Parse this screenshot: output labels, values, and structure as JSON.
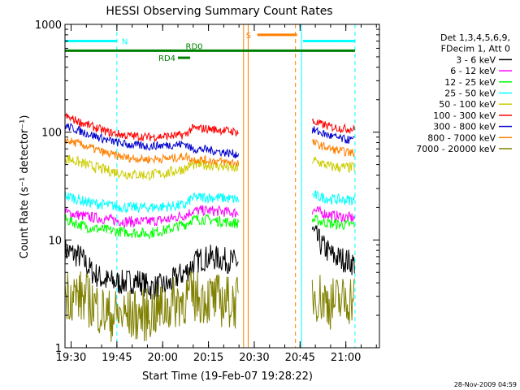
{
  "chart_data": {
    "type": "line",
    "title": "HESSI Observing Summary Count Rates",
    "xlabel": "Start Time (19-Feb-07 19:28:22)",
    "ylabel": "Count Rate (s⁻¹ detector⁻¹)",
    "yscale": "log",
    "ylim": [
      1,
      1000
    ],
    "xlim_minutes": [
      1168,
      1271
    ],
    "x_ticks": [
      {
        "label": "19:30",
        "min": 1170
      },
      {
        "label": "19:45",
        "min": 1185
      },
      {
        "label": "20:00",
        "min": 1200
      },
      {
        "label": "20:15",
        "min": 1215
      },
      {
        "label": "20:30",
        "min": 1230
      },
      {
        "label": "20:45",
        "min": 1245
      },
      {
        "label": "21:00",
        "min": 1260
      }
    ],
    "y_ticks": [
      {
        "label": "1",
        "value": 1
      },
      {
        "label": "10",
        "value": 10
      },
      {
        "label": "100",
        "value": 100
      },
      {
        "label": "1000",
        "value": 1000
      }
    ],
    "legend": {
      "header": [
        "Det 1,3,4,5,6,9,",
        "FDecim 1, Att 0"
      ],
      "placement": "right"
    },
    "series": [
      {
        "name": "3 - 6 keV",
        "color": "#000000",
        "noise": 0.12,
        "segments": [
          [
            [
              1168,
              8
            ],
            [
              1173,
              7
            ],
            [
              1177,
              5
            ],
            [
              1181,
              4.2
            ],
            [
              1186,
              4.0
            ],
            [
              1192,
              4.2
            ],
            [
              1196,
              3.6
            ],
            [
              1202,
              3.8
            ],
            [
              1205,
              4.6
            ],
            [
              1207.5,
              5
            ],
            [
              1209.5,
              5.8
            ],
            [
              1212,
              6.6
            ],
            [
              1216,
              6.9
            ],
            [
              1222,
              6.4
            ],
            [
              1225,
              6.2
            ]
          ],
          [
            [
              1249,
              12
            ],
            [
              1252,
              9
            ],
            [
              1256,
              7
            ],
            [
              1260,
              6.5
            ],
            [
              1263,
              6
            ]
          ]
        ]
      },
      {
        "name": "6 - 12 keV",
        "color": "#ff00ff",
        "noise": 0.05,
        "segments": [
          [
            [
              1168,
              18
            ],
            [
              1175,
              16.5
            ],
            [
              1182,
              15.5
            ],
            [
              1188,
              14.8
            ],
            [
              1195,
              14.8
            ],
            [
              1202,
              15.5
            ],
            [
              1205,
              16.5
            ],
            [
              1207.5,
              17
            ],
            [
              1209.5,
              18.5
            ],
            [
              1214,
              18.8
            ],
            [
              1220,
              18.3
            ],
            [
              1225,
              17.8
            ]
          ],
          [
            [
              1249,
              19
            ],
            [
              1255,
              17
            ],
            [
              1259,
              16.3
            ],
            [
              1263,
              16
            ]
          ]
        ]
      },
      {
        "name": "12 - 25 keV",
        "color": "#00ff00",
        "noise": 0.05,
        "segments": [
          [
            [
              1168,
              15.5
            ],
            [
              1175,
              13.2
            ],
            [
              1182,
              12.3
            ],
            [
              1188,
              11.8
            ],
            [
              1195,
              11.5
            ],
            [
              1202,
              12.5
            ],
            [
              1205,
              13.5
            ],
            [
              1207.5,
              14
            ],
            [
              1209.5,
              15.5
            ],
            [
              1214,
              15.5
            ],
            [
              1220,
              14.8
            ],
            [
              1225,
              14.2
            ]
          ],
          [
            [
              1249,
              15.5
            ],
            [
              1255,
              14.2
            ],
            [
              1259,
              13.8
            ],
            [
              1263,
              14
            ]
          ]
        ]
      },
      {
        "name": "25 - 50 keV",
        "color": "#00ffff",
        "noise": 0.05,
        "segments": [
          [
            [
              1168,
              26
            ],
            [
              1175,
              22.5
            ],
            [
              1182,
              21
            ],
            [
              1188,
              20
            ],
            [
              1195,
              20
            ],
            [
              1202,
              20.5
            ],
            [
              1205,
              20.8
            ],
            [
              1207.5,
              21
            ],
            [
              1209.5,
              24.5
            ],
            [
              1214,
              25
            ],
            [
              1220,
              24.5
            ],
            [
              1225,
              23.5
            ]
          ],
          [
            [
              1249,
              26
            ],
            [
              1255,
              24
            ],
            [
              1259,
              23.5
            ],
            [
              1263,
              23.5
            ]
          ]
        ]
      },
      {
        "name": "50 - 100 keV",
        "color": "#cccc00",
        "noise": 0.05,
        "segments": [
          [
            [
              1168,
              58
            ],
            [
              1175,
              50
            ],
            [
              1182,
              44
            ],
            [
              1188,
              41
            ],
            [
              1195,
              40
            ],
            [
              1202,
              42
            ],
            [
              1205,
              44.5
            ],
            [
              1207.5,
              46
            ],
            [
              1209.5,
              50
            ],
            [
              1214,
              50
            ],
            [
              1220,
              48
            ],
            [
              1225,
              45
            ]
          ],
          [
            [
              1249,
              55
            ],
            [
              1255,
              48
            ],
            [
              1259,
              47
            ],
            [
              1263,
              47
            ]
          ]
        ]
      },
      {
        "name": "100 - 300 keV",
        "color": "#ff0000",
        "noise": 0.04,
        "segments": [
          [
            [
              1168,
              140
            ],
            [
              1175,
              118
            ],
            [
              1182,
              100
            ],
            [
              1188,
              93
            ],
            [
              1195,
              90
            ],
            [
              1202,
              92
            ],
            [
              1205,
              93
            ],
            [
              1207.5,
              95
            ],
            [
              1209.5,
              108
            ],
            [
              1214,
              108
            ],
            [
              1220,
              104
            ],
            [
              1225,
              100
            ]
          ],
          [
            [
              1249,
              125
            ],
            [
              1255,
              112
            ],
            [
              1259,
              108
            ],
            [
              1263,
              107
            ]
          ]
        ]
      },
      {
        "name": "300 - 800 keV",
        "color": "#0000cc",
        "noise": 0.04,
        "segments": [
          [
            [
              1168,
              115
            ],
            [
              1175,
              98
            ],
            [
              1182,
              84
            ],
            [
              1188,
              77
            ],
            [
              1195,
              74
            ],
            [
              1202,
              76
            ],
            [
              1205,
              77
            ],
            [
              1207.5,
              78
            ],
            [
              1209.5,
              70
            ],
            [
              1214,
              69
            ],
            [
              1220,
              65
            ],
            [
              1225,
              62
            ]
          ],
          [
            [
              1249,
              105
            ],
            [
              1255,
              92
            ],
            [
              1259,
              86
            ],
            [
              1263,
              84
            ]
          ]
        ]
      },
      {
        "name": "800 - 7000 keV",
        "color": "#ff8000",
        "noise": 0.04,
        "segments": [
          [
            [
              1168,
              85
            ],
            [
              1175,
              74
            ],
            [
              1182,
              63
            ],
            [
              1188,
              58
            ],
            [
              1195,
              56
            ],
            [
              1202,
              57
            ],
            [
              1205,
              58
            ],
            [
              1207.5,
              60
            ],
            [
              1209.5,
              56
            ],
            [
              1214,
              55
            ],
            [
              1220,
              53
            ],
            [
              1225,
              52
            ]
          ],
          [
            [
              1249,
              80
            ],
            [
              1255,
              70
            ],
            [
              1259,
              66
            ],
            [
              1263,
              64
            ]
          ]
        ]
      },
      {
        "name": "7000 - 20000 keV",
        "color": "#808000",
        "noise": 0.25,
        "segments": [
          [
            [
              1168,
              3.2
            ],
            [
              1173,
              3.0
            ],
            [
              1177,
              2.6
            ],
            [
              1182,
              2.0
            ],
            [
              1188,
              2.0
            ],
            [
              1194,
              2.0
            ],
            [
              1200,
              2.3
            ],
            [
              1205,
              2.7
            ],
            [
              1209.5,
              3.0
            ],
            [
              1214,
              2.9
            ],
            [
              1220,
              2.7
            ],
            [
              1225,
              2.6
            ]
          ],
          [
            [
              1249,
              3.2
            ],
            [
              1255,
              2.6
            ],
            [
              1259,
              2.7
            ],
            [
              1263,
              3.0
            ]
          ]
        ]
      }
    ],
    "annotations": {
      "night_bars": [
        {
          "label": "N",
          "color": "#00ffff",
          "y": 700,
          "ranges": [
            [
              1168,
              1185
            ]
          ],
          "end_tick_only": [
            1260,
            1263
          ]
        },
        {
          "label": "",
          "color": "#00ffff",
          "y": 700,
          "ranges": [
            [
              1246,
              1260
            ]
          ]
        }
      ],
      "saa_bar": {
        "label": "S",
        "color": "#ff8000",
        "y": 800,
        "range": [
          1231,
          1244
        ]
      },
      "rd0_bar": {
        "label": "RD0",
        "color": "#008000",
        "y": 570,
        "range": [
          1168,
          1263
        ]
      },
      "rd4_bar": {
        "label": "RD4",
        "color": "#008000",
        "y": 490,
        "range": [
          1205,
          1209
        ]
      },
      "boundaries": [
        {
          "min": 1168,
          "color": "#00ffff",
          "style": "solid"
        },
        {
          "min": 1185,
          "color": "#00ffff",
          "style": "dashed"
        },
        {
          "min": 1245.5,
          "color": "#00ffff",
          "style": "solid"
        },
        {
          "min": 1263,
          "color": "#00ffff",
          "style": "dashed"
        },
        {
          "min": 1226.5,
          "color": "#ff8000",
          "style": "solid"
        },
        {
          "min": 1228,
          "color": "#ff8000",
          "style": "solid"
        },
        {
          "min": 1243.5,
          "color": "#ff8000",
          "style": "dashed"
        }
      ]
    },
    "footer_timestamp": "28-Nov-2009 04:59"
  }
}
